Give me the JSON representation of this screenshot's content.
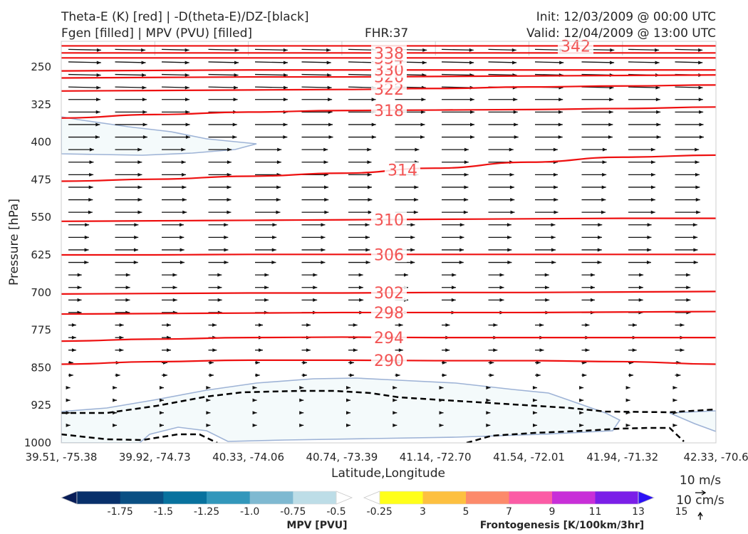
{
  "titles": {
    "line1": "Theta-E (K) [red] | -D(theta-E)/DZ-[black]",
    "line2": "Fgen [filled] | MPV (PVU) [filled]",
    "fhr": "FHR:37",
    "init": "Init: 12/03/2009 @ 00:00 UTC",
    "valid": "Valid: 12/04/2009 @ 13:00 UTC"
  },
  "chart_data": {
    "type": "cross-section",
    "xlabel": "Latitude,Longitude",
    "ylabel": "Pressure [hPa]",
    "x_ticks": [
      "39.51, -75.38",
      "39.92, -74.73",
      "40.33, -74.06",
      "40.74, -73.39",
      "41.14, -72.70",
      "41.54, -72.01",
      "41.94, -71.32",
      "42.33, -70.6"
    ],
    "y_ticks": [
      250,
      325,
      400,
      475,
      550,
      625,
      700,
      775,
      850,
      925,
      1000
    ],
    "ylim": [
      1000,
      200
    ],
    "theta_e_contours": [
      {
        "label": "290",
        "y": [
          843,
          838,
          835,
          835,
          836,
          836,
          838,
          843
        ]
      },
      {
        "label": "294",
        "y": [
          797,
          793,
          790,
          789,
          790,
          790,
          790,
          790
        ]
      },
      {
        "label": "298",
        "y": [
          743,
          742,
          741,
          740,
          740,
          740,
          739,
          738
        ]
      },
      {
        "label": "302",
        "y": [
          703,
          702,
          701,
          701,
          700,
          700,
          699,
          698
        ]
      },
      {
        "label": "306",
        "y": [
          625,
          625,
          624,
          624,
          624,
          624,
          624,
          624
        ]
      },
      {
        "label": "310",
        "y": [
          558,
          557,
          556,
          555,
          554,
          553,
          552,
          552
        ]
      },
      {
        "label": "314",
        "y": [
          478,
          474,
          468,
          462,
          452,
          440,
          430,
          426
        ]
      },
      {
        "label": "318",
        "y": [
          352,
          345,
          340,
          337,
          336,
          335,
          333,
          330
        ]
      },
      {
        "label": "322",
        "y": [
          298,
          297,
          296,
          295,
          293,
          290,
          288,
          286
        ]
      },
      {
        "label": "326",
        "y": [
          272,
          271,
          270,
          270,
          269,
          268,
          267,
          266
        ]
      },
      {
        "label": "330",
        "y": [
          258,
          257,
          256,
          256,
          256,
          256,
          256,
          256
        ]
      },
      {
        "label": "334",
        "y": [
          232,
          232,
          232,
          232,
          232,
          232,
          232,
          232
        ]
      },
      {
        "label": "338",
        "y": [
          222,
          222,
          222,
          222,
          222,
          222,
          222,
          222
        ]
      },
      {
        "label": "342",
        "y": [
          208,
          208,
          208,
          208,
          208,
          208,
          208,
          208
        ]
      }
    ],
    "mpv_legend": {
      "label": "MPV [PVU]",
      "tick_labels": [
        "-1.75",
        "-1.5",
        "-1.25",
        "-1.0",
        "-0.75",
        "-0.5",
        "-0.25"
      ],
      "colors": [
        "#081d58",
        "#08306b",
        "#0a4f83",
        "#08729e",
        "#3297bb",
        "#7fb9d1",
        "#bddde7",
        "#ffffff"
      ]
    },
    "fgen_legend": {
      "label": "Frontogenesis [K/100km/3hr]",
      "tick_labels": [
        "3",
        "5",
        "7",
        "9",
        "11",
        "13",
        "15"
      ],
      "colors": [
        "#ffffff",
        "#ffff1a",
        "#fdc040",
        "#fc8a6b",
        "#fb5ca5",
        "#c82fd8",
        "#7b1fe8",
        "#2c11f5"
      ]
    },
    "wind_key": {
      "speed": "10 m/s",
      "vertical": "10 cm/s"
    }
  }
}
